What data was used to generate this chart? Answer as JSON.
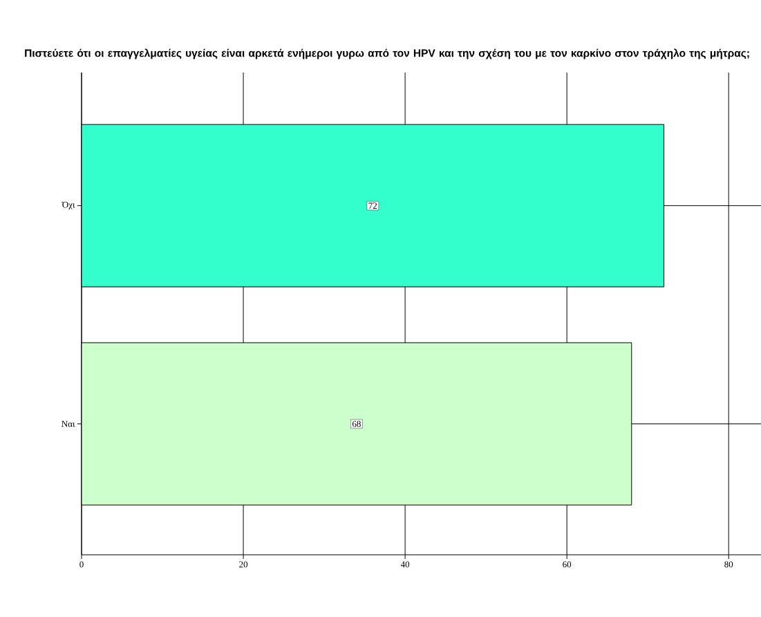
{
  "chart_data": {
    "type": "bar",
    "orientation": "horizontal",
    "title": "Πιστεύετε ότι οι επαγγελματίες υγείας είναι αρκετά ενήμεροι γυρω από τον HPV και την σχέση του με τον καρκίνο στον τράχηλο της μήτρας;",
    "categories": [
      "Όχι",
      "Ναι"
    ],
    "values": [
      72,
      68
    ],
    "colors": [
      "#33ffcc",
      "#ccffcc"
    ],
    "xlim": [
      0,
      84
    ],
    "xticks": [
      0,
      20,
      40,
      60,
      80
    ],
    "grid": true,
    "data_labels": true
  }
}
